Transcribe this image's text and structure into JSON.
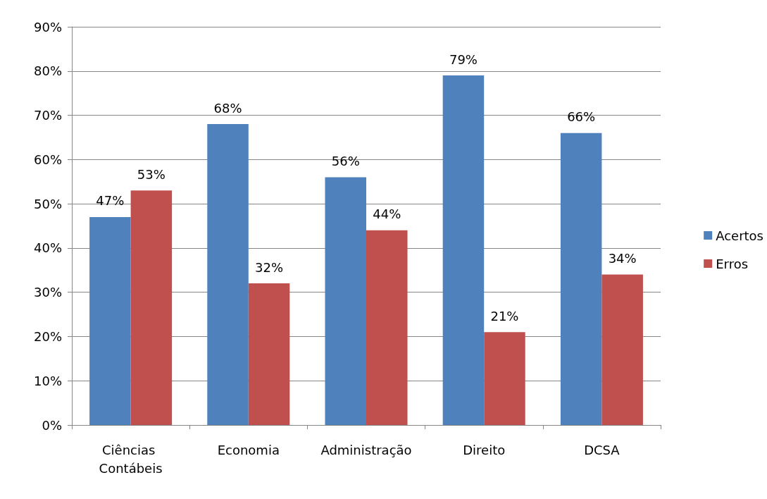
{
  "chart_data": {
    "type": "bar",
    "categories": [
      "Ciências Contábeis",
      "Economia",
      "Administração",
      "Direito",
      "DCSA"
    ],
    "series": [
      {
        "name": "Acertos",
        "color": "#4f81bd",
        "values": [
          47,
          68,
          56,
          79,
          66
        ],
        "value_labels": [
          "47%",
          "68%",
          "56%",
          "79%",
          "66%"
        ]
      },
      {
        "name": "Erros",
        "color": "#c0504d",
        "values": [
          53,
          32,
          44,
          21,
          34
        ],
        "value_labels": [
          "53%",
          "32%",
          "44%",
          "21%",
          "34%"
        ]
      }
    ],
    "ylim": [
      0,
      90
    ],
    "yticks": [
      {
        "value": 0,
        "label": "0%"
      },
      {
        "value": 10,
        "label": "10%"
      },
      {
        "value": 20,
        "label": "20%"
      },
      {
        "value": 30,
        "label": "30%"
      },
      {
        "value": 40,
        "label": "40%"
      },
      {
        "value": 50,
        "label": "50%"
      },
      {
        "value": 60,
        "label": "60%"
      },
      {
        "value": 70,
        "label": "70%"
      },
      {
        "value": 80,
        "label": "80%"
      },
      {
        "value": 90,
        "label": "90%"
      }
    ],
    "grid": "y",
    "legend": "right"
  }
}
